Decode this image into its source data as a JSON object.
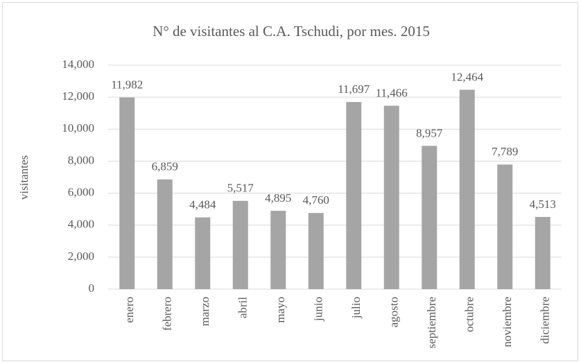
{
  "chart_data": {
    "type": "bar",
    "title": "N° de visitantes al C.A. Tschudi, por mes. 2015",
    "y_label": "visitantes",
    "categories": [
      "enero",
      "febrero",
      "marzo",
      "abril",
      "mayo",
      "junio",
      "julio",
      "agosto",
      "septiembre",
      "octubre",
      "noviembre",
      "diciembre"
    ],
    "values": [
      11982,
      6859,
      4484,
      5517,
      4895,
      4760,
      11697,
      11466,
      8957,
      12464,
      7789,
      4513
    ],
    "value_labels": [
      "11,982",
      "6,859",
      "4,484",
      "5,517",
      "4,895",
      "4,760",
      "11,697",
      "11,466",
      "8,957",
      "12,464",
      "7,789",
      "4,513"
    ],
    "color": "#a5a5a5",
    "ylim": [
      0,
      14000
    ],
    "yticks": [
      0,
      {
        "value": 2000,
        "label": "2,000"
      },
      {
        "value": 4000,
        "label": "4,000"
      },
      {
        "value": 6000,
        "label": "6,000"
      },
      {
        "value": 8000,
        "label": "8,000"
      },
      {
        "value": 10000,
        "label": "10,000"
      },
      {
        "value": 12000,
        "label": "12,000"
      },
      {
        "value": 14000,
        "label": "14,000"
      }
    ],
    "grid": true
  }
}
